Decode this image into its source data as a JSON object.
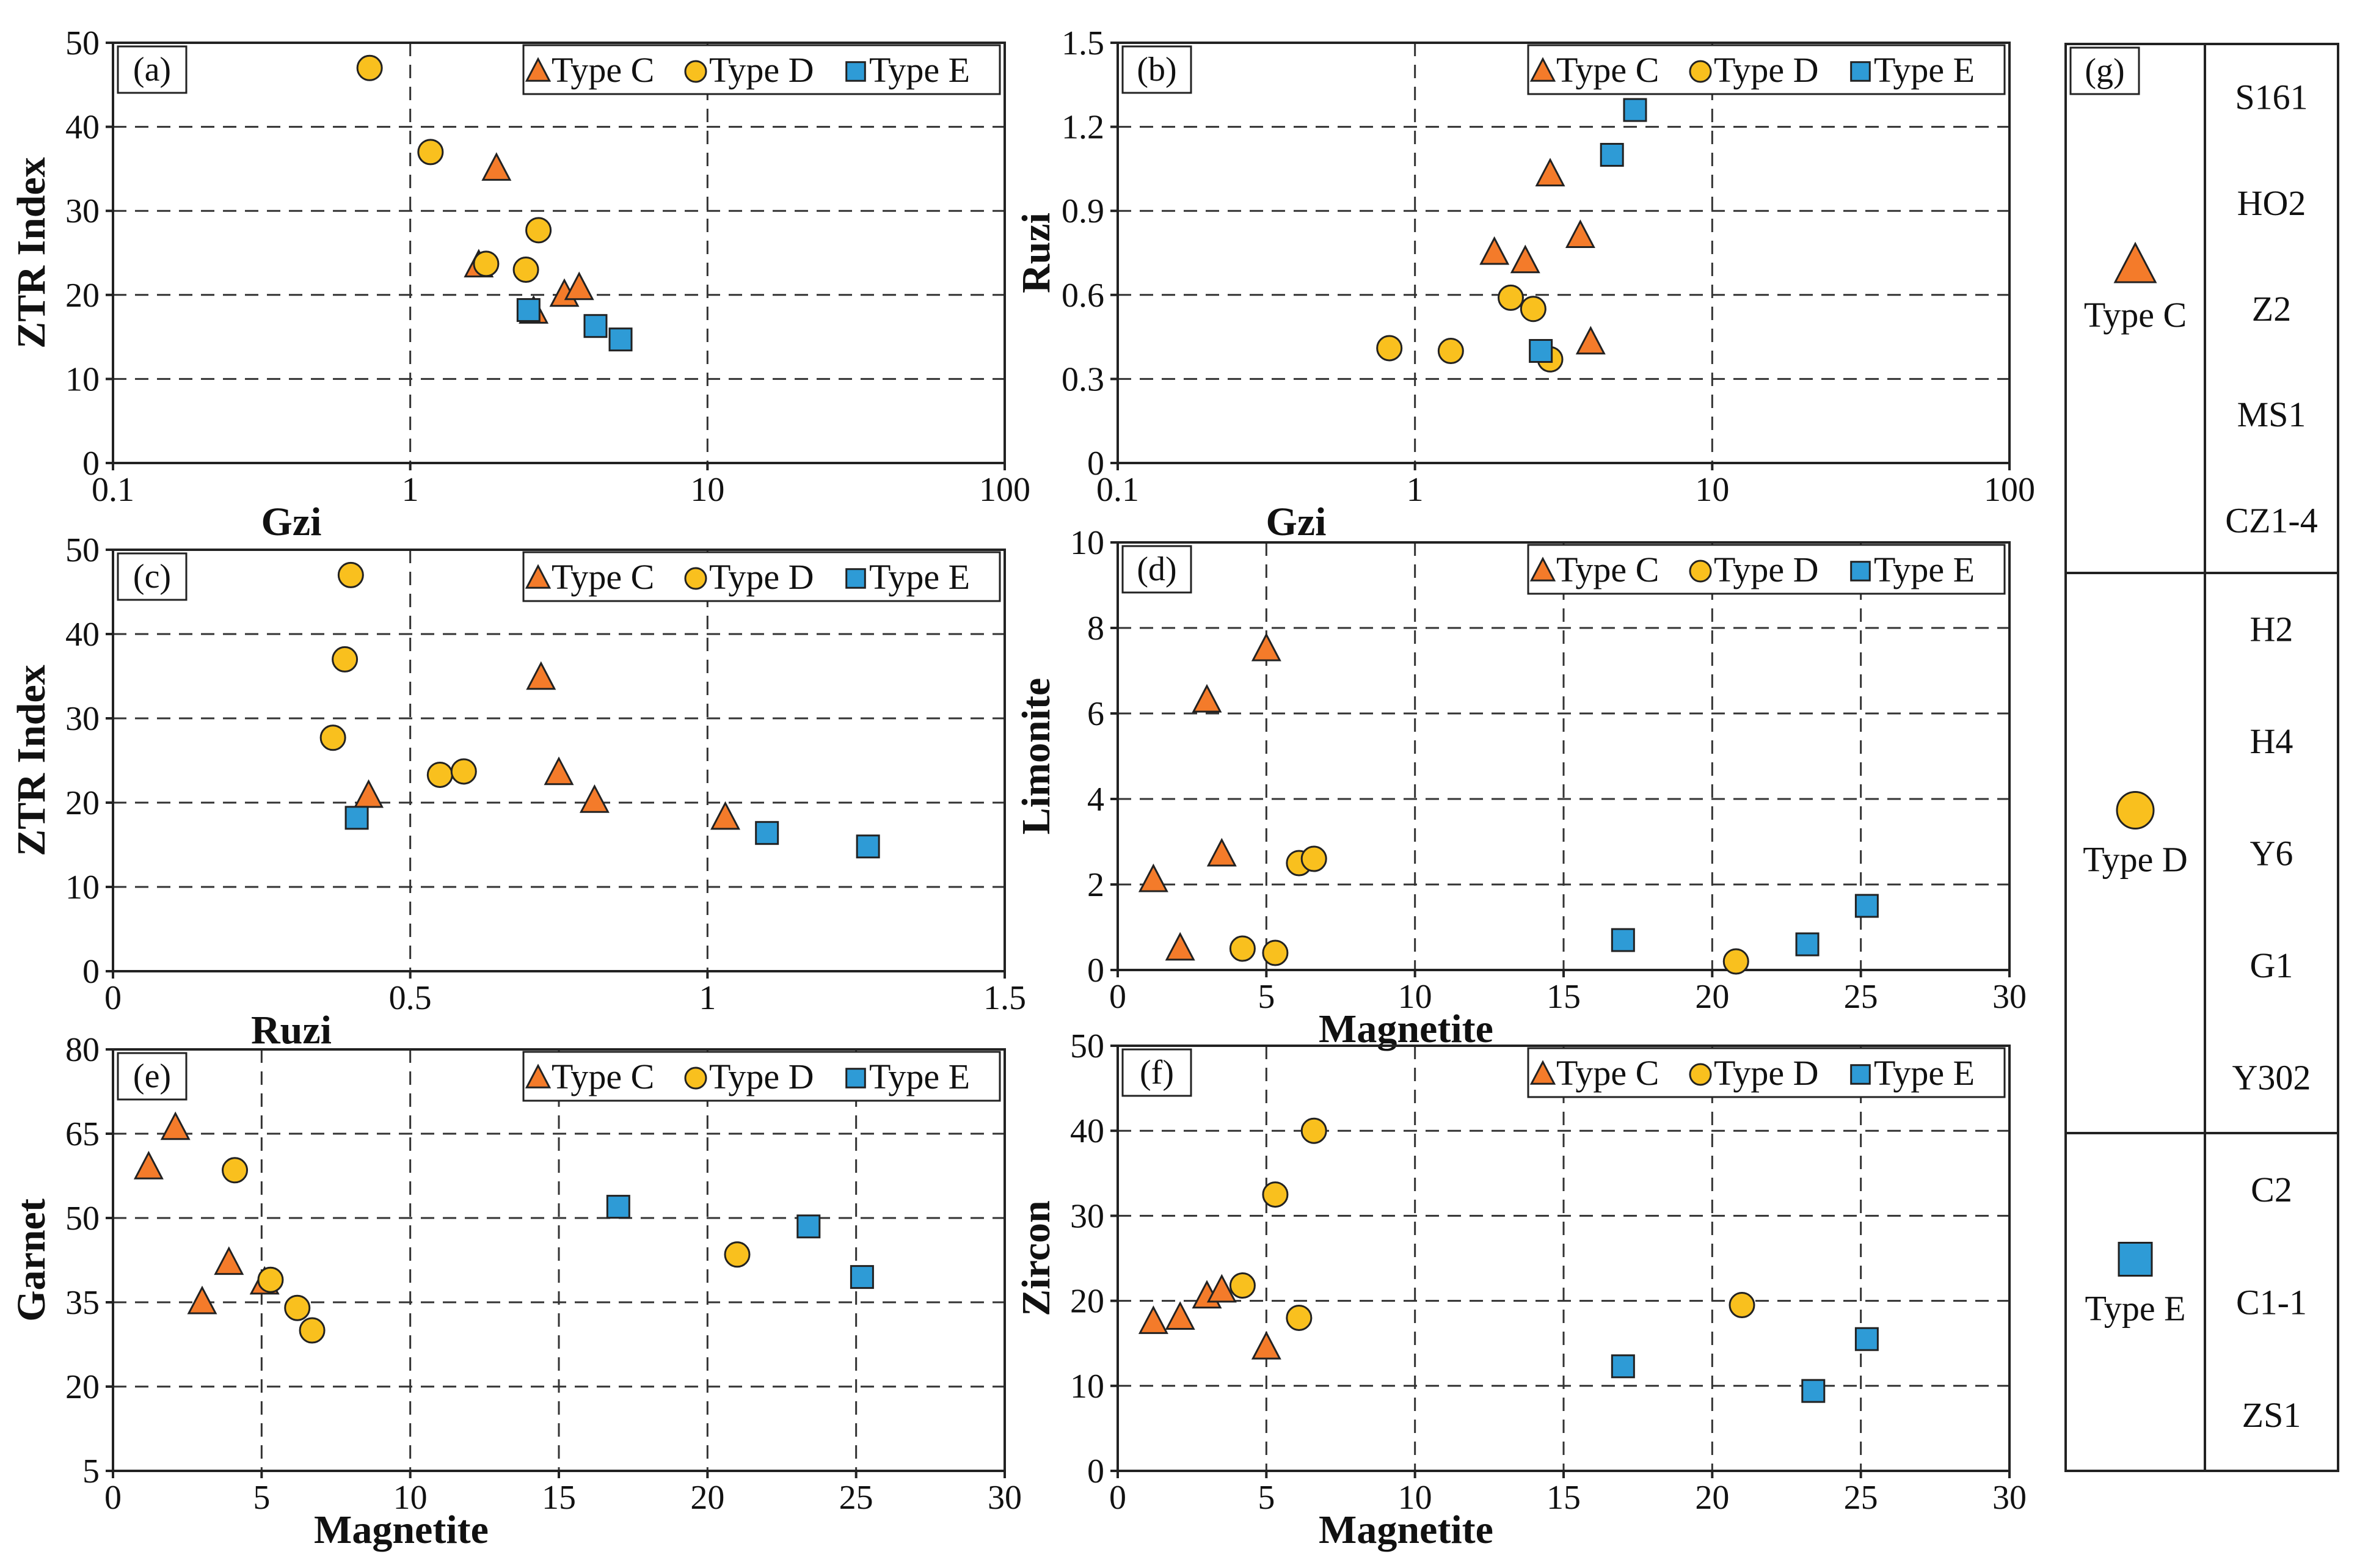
{
  "colors": {
    "typeC": "#F47B2A",
    "typeD": "#F9C01E",
    "typeE": "#2E9BD6",
    "axis": "#222222"
  },
  "chart_data": [
    {
      "id": "a",
      "type": "scatter",
      "tag": "(a)",
      "xscale": "log",
      "xlim": [
        0.1,
        100
      ],
      "ylim": [
        0,
        50
      ],
      "xticks": [
        0.1,
        1,
        10,
        100
      ],
      "xtick_labels": [
        "0.1",
        "1",
        "10",
        "100"
      ],
      "yticks": [
        0,
        10,
        20,
        30,
        40,
        50
      ],
      "ytick_labels": [
        "0",
        "10",
        "20",
        "30",
        "40",
        "50"
      ],
      "xlabel": "Gzi",
      "ylabel": "ZTR Index",
      "legend": [
        "Type C",
        "Type D",
        "Type E"
      ],
      "series": [
        {
          "name": "Type C",
          "marker": "triangle",
          "points": [
            [
              1.95,
              35
            ],
            [
              1.7,
              23.5
            ],
            [
              2.6,
              18
            ],
            [
              3.3,
              20
            ],
            [
              3.7,
              20.8
            ]
          ]
        },
        {
          "name": "Type D",
          "marker": "circle",
          "points": [
            [
              0.73,
              47
            ],
            [
              1.17,
              37
            ],
            [
              1.8,
              23.7
            ],
            [
              2.7,
              27.7
            ],
            [
              2.45,
              23
            ]
          ]
        },
        {
          "name": "Type E",
          "marker": "square",
          "points": [
            [
              2.5,
              18.2
            ],
            [
              4.2,
              16.3
            ],
            [
              5.1,
              14.7
            ]
          ]
        }
      ]
    },
    {
      "id": "b",
      "type": "scatter",
      "tag": "(b)",
      "xscale": "log",
      "xlim": [
        0.1,
        100
      ],
      "ylim": [
        0,
        1.5
      ],
      "xticks": [
        0.1,
        1,
        10,
        100
      ],
      "xtick_labels": [
        "0.1",
        "1",
        "10",
        "100"
      ],
      "yticks": [
        0,
        0.3,
        0.6,
        0.9,
        1.2,
        1.5
      ],
      "ytick_labels": [
        "0",
        "0.3",
        "0.6",
        "0.9",
        "1.2",
        "1.5"
      ],
      "xlabel": "Gzi",
      "ylabel": "Ruzi",
      "legend": [
        "Type C",
        "Type D",
        "Type E"
      ],
      "series": [
        {
          "name": "Type C",
          "marker": "triangle",
          "points": [
            [
              1.85,
              0.75
            ],
            [
              2.35,
              0.72
            ],
            [
              2.85,
              1.03
            ],
            [
              3.6,
              0.81
            ],
            [
              3.9,
              0.43
            ]
          ]
        },
        {
          "name": "Type D",
          "marker": "circle",
          "points": [
            [
              0.82,
              0.41
            ],
            [
              1.32,
              0.4
            ],
            [
              2.1,
              0.59
            ],
            [
              2.5,
              0.55
            ],
            [
              2.85,
              0.37
            ]
          ]
        },
        {
          "name": "Type E",
          "marker": "square",
          "points": [
            [
              2.65,
              0.4
            ],
            [
              4.6,
              1.1
            ],
            [
              5.5,
              1.26
            ]
          ]
        }
      ]
    },
    {
      "id": "c",
      "type": "scatter",
      "tag": "(c)",
      "xscale": "linear",
      "xlim": [
        0,
        1.5
      ],
      "ylim": [
        0,
        50
      ],
      "xticks": [
        0,
        0.5,
        1,
        1.5
      ],
      "xtick_labels": [
        "0",
        "0.5",
        "1",
        "1.5"
      ],
      "yticks": [
        0,
        10,
        20,
        30,
        40,
        50
      ],
      "ytick_labels": [
        "0",
        "10",
        "20",
        "30",
        "40",
        "50"
      ],
      "xlabel": "Ruzi",
      "ylabel": "ZTR Index",
      "legend": [
        "Type C",
        "Type D",
        "Type E"
      ],
      "series": [
        {
          "name": "Type C",
          "marker": "triangle",
          "points": [
            [
              0.43,
              20.8
            ],
            [
              0.72,
              34.8
            ],
            [
              0.75,
              23.5
            ],
            [
              0.81,
              20.2
            ],
            [
              1.03,
              18.2
            ]
          ]
        },
        {
          "name": "Type D",
          "marker": "circle",
          "points": [
            [
              0.4,
              47
            ],
            [
              0.39,
              37
            ],
            [
              0.37,
              27.7
            ],
            [
              0.55,
              23.3
            ],
            [
              0.59,
              23.7
            ]
          ]
        },
        {
          "name": "Type E",
          "marker": "square",
          "points": [
            [
              0.41,
              18.2
            ],
            [
              1.1,
              16.4
            ],
            [
              1.27,
              14.8
            ]
          ]
        }
      ]
    },
    {
      "id": "d",
      "type": "scatter",
      "tag": "(d)",
      "xscale": "linear",
      "xlim": [
        0,
        30
      ],
      "ylim": [
        0,
        10
      ],
      "xticks": [
        0,
        5,
        10,
        15,
        20,
        25,
        30
      ],
      "xtick_labels": [
        "0",
        "5",
        "10",
        "15",
        "20",
        "25",
        "30"
      ],
      "yticks": [
        0,
        2,
        4,
        6,
        8,
        10
      ],
      "ytick_labels": [
        "0",
        "2",
        "4",
        "6",
        "8",
        "10"
      ],
      "xlabel": "Magnetite",
      "ylabel": "Limonite",
      "legend": [
        "Type C",
        "Type D",
        "Type E"
      ],
      "series": [
        {
          "name": "Type C",
          "marker": "triangle",
          "points": [
            [
              1.2,
              2.1
            ],
            [
              2.1,
              0.5
            ],
            [
              3.0,
              6.3
            ],
            [
              3.5,
              2.7
            ],
            [
              5.0,
              7.5
            ]
          ]
        },
        {
          "name": "Type D",
          "marker": "circle",
          "points": [
            [
              4.2,
              0.5
            ],
            [
              5.3,
              0.4
            ],
            [
              6.1,
              2.5
            ],
            [
              6.6,
              2.6
            ],
            [
              20.8,
              0.2
            ]
          ]
        },
        {
          "name": "Type E",
          "marker": "square",
          "points": [
            [
              17.0,
              0.7
            ],
            [
              23.2,
              0.6
            ],
            [
              25.2,
              1.5
            ]
          ]
        }
      ]
    },
    {
      "id": "e",
      "type": "scatter",
      "tag": "(e)",
      "xscale": "linear",
      "xlim": [
        0,
        30
      ],
      "ylim": [
        5,
        80
      ],
      "xticks": [
        0,
        5,
        10,
        15,
        20,
        25,
        30
      ],
      "xtick_labels": [
        "0",
        "5",
        "10",
        "15",
        "20",
        "25",
        "30"
      ],
      "yticks": [
        5,
        20,
        35,
        50,
        65,
        80
      ],
      "ytick_labels": [
        "5",
        "20",
        "35",
        "50",
        "65",
        "80"
      ],
      "xlabel": "Magnetite",
      "ylabel": "Garnet",
      "legend": [
        "Type C",
        "Type D",
        "Type E"
      ],
      "series": [
        {
          "name": "Type C",
          "marker": "triangle",
          "points": [
            [
              1.2,
              59
            ],
            [
              2.1,
              66
            ],
            [
              3.0,
              35
            ],
            [
              3.9,
              42
            ],
            [
              5.1,
              38.5
            ]
          ]
        },
        {
          "name": "Type D",
          "marker": "circle",
          "points": [
            [
              4.1,
              58.5
            ],
            [
              5.3,
              39
            ],
            [
              6.2,
              34
            ],
            [
              6.7,
              30
            ],
            [
              21.0,
              43.5
            ]
          ]
        },
        {
          "name": "Type E",
          "marker": "square",
          "points": [
            [
              17.0,
              52
            ],
            [
              23.4,
              48.5
            ],
            [
              25.2,
              39.5
            ]
          ]
        }
      ]
    },
    {
      "id": "f",
      "type": "scatter",
      "tag": "(f)",
      "xscale": "linear",
      "xlim": [
        0,
        30
      ],
      "ylim": [
        0,
        50
      ],
      "xticks": [
        0,
        5,
        10,
        15,
        20,
        25,
        30
      ],
      "xtick_labels": [
        "0",
        "5",
        "10",
        "15",
        "20",
        "25",
        "30"
      ],
      "yticks": [
        0,
        10,
        20,
        30,
        40,
        50
      ],
      "ytick_labels": [
        "0",
        "10",
        "20",
        "30",
        "40",
        "50"
      ],
      "xlabel": "Magnetite",
      "ylabel": "Zircon",
      "legend": [
        "Type C",
        "Type D",
        "Type E"
      ],
      "series": [
        {
          "name": "Type C",
          "marker": "triangle",
          "points": [
            [
              1.2,
              17.5
            ],
            [
              2.1,
              18
            ],
            [
              3.0,
              20.5
            ],
            [
              3.5,
              21.2
            ],
            [
              5.0,
              14.5
            ]
          ]
        },
        {
          "name": "Type D",
          "marker": "circle",
          "points": [
            [
              4.2,
              21.8
            ],
            [
              5.3,
              32.5
            ],
            [
              6.1,
              18
            ],
            [
              6.6,
              40
            ],
            [
              21.0,
              19.5
            ]
          ]
        },
        {
          "name": "Type E",
          "marker": "square",
          "points": [
            [
              17.0,
              12.3
            ],
            [
              23.4,
              9.4
            ],
            [
              25.2,
              15.5
            ]
          ]
        }
      ]
    }
  ],
  "panel_g": {
    "tag": "(g)",
    "groups": [
      {
        "name": "Type C",
        "marker": "triangle",
        "samples": [
          "S161",
          "HO2",
          "Z2",
          "MS1",
          "CZ1-4"
        ]
      },
      {
        "name": "Type D",
        "marker": "circle",
        "samples": [
          "H2",
          "H4",
          "Y6",
          "G1",
          "Y302"
        ]
      },
      {
        "name": "Type E",
        "marker": "square",
        "samples": [
          "C2",
          "C1-1",
          "ZS1"
        ]
      }
    ]
  }
}
